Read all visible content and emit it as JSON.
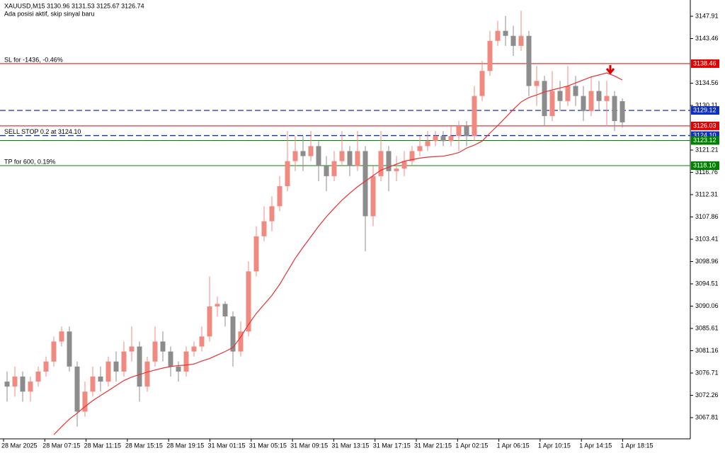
{
  "chart_data": {
    "type": "candlestick",
    "title": "XAUUSD,M15  3130.96 3131.53 3125.67 3126.74",
    "subtitle": "Ada posisi aktif, skip sinyal baru",
    "ylim": [
      3063.57,
      3151.16
    ],
    "yticks": [
      3147.91,
      3143.46,
      3134.56,
      3130.11,
      3121.21,
      3116.76,
      3112.31,
      3107.86,
      3103.41,
      3098.96,
      3094.51,
      3090.06,
      3085.61,
      3081.16,
      3076.71,
      3072.26,
      3067.81
    ],
    "xlabels": [
      "28 Mar 2025",
      "28 Mar 07:15",
      "28 Mar 11:15",
      "28 Mar 15:15",
      "28 Mar 19:15",
      "31 Mar 01:15",
      "31 Mar 05:15",
      "31 Mar 09:15",
      "31 Mar 13:15",
      "31 Mar 17:15",
      "31 Mar 21:15",
      "1 Apr 02:15",
      "1 Apr 06:15",
      "1 Apr 10:15",
      "1 Apr 14:15",
      "1 Apr 18:15"
    ],
    "up_color": "#f08a80",
    "down_color": "#8c8c8c",
    "ma_color": "#e83030",
    "candles": [
      [
        3075,
        3077,
        3071,
        3074
      ],
      [
        3074,
        3078,
        3072,
        3076
      ],
      [
        3076,
        3077,
        3071,
        3073
      ],
      [
        3073,
        3076,
        3071,
        3075
      ],
      [
        3075,
        3078,
        3074,
        3077
      ],
      [
        3077,
        3080,
        3076,
        3079
      ],
      [
        3079,
        3084,
        3078,
        3083
      ],
      [
        3083,
        3086,
        3082,
        3085
      ],
      [
        3085,
        3086,
        3077,
        3078
      ],
      [
        3078,
        3079,
        3066,
        3069
      ],
      [
        3069,
        3075,
        3068,
        3073
      ],
      [
        3073,
        3078,
        3072,
        3076
      ],
      [
        3076,
        3078,
        3073,
        3075
      ],
      [
        3075,
        3080,
        3074,
        3079
      ],
      [
        3079,
        3081,
        3075,
        3077
      ],
      [
        3077,
        3083,
        3076,
        3081
      ],
      [
        3081,
        3086,
        3079,
        3082
      ],
      [
        3082,
        3083,
        3071,
        3074
      ],
      [
        3074,
        3080,
        3073,
        3079
      ],
      [
        3079,
        3086,
        3078,
        3083
      ],
      [
        3083,
        3085,
        3079,
        3081
      ],
      [
        3081,
        3082,
        3076,
        3078
      ],
      [
        3078,
        3079,
        3075,
        3077
      ],
      [
        3077,
        3082,
        3076,
        3081
      ],
      [
        3081,
        3083,
        3080,
        3082
      ],
      [
        3082,
        3086,
        3081,
        3084
      ],
      [
        3084,
        3096,
        3083,
        3090
      ],
      [
        3090,
        3092,
        3088,
        3090.5
      ],
      [
        3090.5,
        3091,
        3086,
        3088
      ],
      [
        3088,
        3089,
        3078,
        3081
      ],
      [
        3081,
        3087,
        3080,
        3085
      ],
      [
        3085,
        3099,
        3084,
        3097
      ],
      [
        3097,
        3106,
        3096,
        3104
      ],
      [
        3104,
        3110,
        3103,
        3107
      ],
      [
        3107,
        3112,
        3105,
        3110
      ],
      [
        3110,
        3116,
        3109,
        3114
      ],
      [
        3114,
        3125,
        3113,
        3119
      ],
      [
        3119,
        3124,
        3117,
        3121
      ],
      [
        3121,
        3124,
        3117,
        3120
      ],
      [
        3120,
        3125,
        3119,
        3122
      ],
      [
        3122,
        3123,
        3115,
        3118
      ],
      [
        3118,
        3120,
        3113,
        3116
      ],
      [
        3116,
        3121,
        3115,
        3119
      ],
      [
        3119,
        3125,
        3118,
        3121
      ],
      [
        3121,
        3122,
        3116,
        3118
      ],
      [
        3118,
        3125,
        3117,
        3121
      ],
      [
        3121,
        3122,
        3101,
        3108
      ],
      [
        3108,
        3118,
        3106,
        3116
      ],
      [
        3116,
        3125,
        3115,
        3121
      ],
      [
        3121,
        3122,
        3113,
        3117
      ],
      [
        3117,
        3120,
        3115,
        3117.5
      ],
      [
        3117.5,
        3121,
        3116,
        3119
      ],
      [
        3119,
        3122,
        3118,
        3121
      ],
      [
        3121,
        3124,
        3120,
        3122
      ],
      [
        3122,
        3125,
        3121,
        3123
      ],
      [
        3123,
        3125,
        3122,
        3124
      ],
      [
        3124,
        3125,
        3122,
        3123
      ],
      [
        3123,
        3126,
        3122,
        3124
      ],
      [
        3124,
        3127,
        3121,
        3126
      ],
      [
        3126,
        3127,
        3122,
        3124
      ],
      [
        3124,
        3134,
        3123,
        3132
      ],
      [
        3132,
        3139,
        3131,
        3137
      ],
      [
        3137,
        3145,
        3136,
        3143
      ],
      [
        3143,
        3147,
        3142,
        3145
      ],
      [
        3145,
        3148,
        3142,
        3144
      ],
      [
        3144,
        3146,
        3140,
        3142
      ],
      [
        3142,
        3149,
        3141,
        3144
      ],
      [
        3144,
        3145,
        3132,
        3134
      ],
      [
        3134,
        3138,
        3130,
        3135
      ],
      [
        3135,
        3136,
        3126,
        3128
      ],
      [
        3128,
        3137,
        3127,
        3133
      ],
      [
        3133,
        3135,
        3129,
        3131
      ],
      [
        3131,
        3138,
        3130,
        3134
      ],
      [
        3134,
        3136,
        3130,
        3132
      ],
      [
        3132,
        3134,
        3127,
        3129
      ],
      [
        3129,
        3136,
        3128,
        3133
      ],
      [
        3133,
        3135,
        3129,
        3131
      ],
      [
        3131,
        3135,
        3126,
        3132
      ],
      [
        3132,
        3133,
        3125,
        3127
      ],
      [
        3130.96,
        3131.53,
        3125.67,
        3126.74
      ]
    ],
    "ma": [
      null,
      null,
      null,
      null,
      null,
      null,
      3064.4,
      3066,
      3067.5,
      3068.7,
      3070,
      3071.2,
      3072.2,
      3073.2,
      3074.2,
      3075.2,
      3075.9,
      3076.4,
      3076.9,
      3077.3,
      3077.7,
      3078,
      3078.2,
      3078.3,
      3078.5,
      3079.1,
      3079.6,
      3080.3,
      3081,
      3081.8,
      3083.9,
      3086.4,
      3088.6,
      3090.4,
      3092.2,
      3094.4,
      3097,
      3099.6,
      3101.8,
      3103.9,
      3106,
      3107.9,
      3109.6,
      3111.2,
      3112.6,
      3113.9,
      3115,
      3116.1,
      3117.2,
      3117.8,
      3118.4,
      3119,
      3119.3,
      3119.6,
      3119.8,
      3119.9,
      3120,
      3120.3,
      3120.7,
      3121.6,
      3122.2,
      3123,
      3124.6,
      3126.1,
      3127.7,
      3129.3,
      3130.8,
      3131.7,
      3132.2,
      3132.8,
      3133.2,
      3133.6,
      3134,
      3134.6,
      3135.2,
      3135.8,
      3136.2,
      3136.6,
      3136,
      3135.2
    ],
    "levels": [
      {
        "value": 3138.46,
        "text": "SL for -1436, -0.46%",
        "color": "#e00000",
        "dashed": false
      },
      {
        "value": 3129.12,
        "color": "#1030c0",
        "dashed": true
      },
      {
        "value": 3126.03,
        "color": "#e00000",
        "dashed": false
      },
      {
        "value": 3124.1,
        "value_label": "3124.10",
        "text": "SELL STOP 0.2 at 3124.10",
        "color": "#1030c0",
        "dashed": true
      },
      {
        "value": 3123.12,
        "color": "#008000",
        "dashed": false
      },
      {
        "value": 3118.1,
        "value_label": "3118.10",
        "text": "TP for 600, 0.19%",
        "color": "#008000",
        "dashed": false
      }
    ]
  }
}
